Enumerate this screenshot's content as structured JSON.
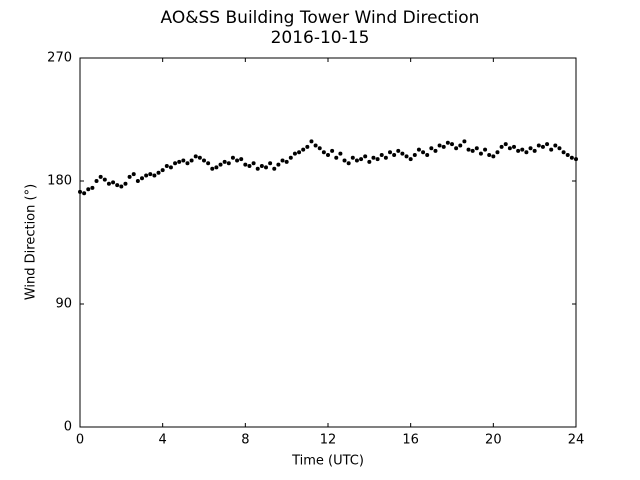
{
  "chart_data": {
    "type": "scatter",
    "title": "AO&SS Building Tower Wind Direction",
    "subtitle": "2016-10-15",
    "x_label": "Time (UTC)",
    "y_label": "Wind Direction (°)",
    "color": "#000000",
    "xlim": [
      0,
      24
    ],
    "xticks": [
      0,
      4,
      8,
      12,
      16,
      20,
      24
    ],
    "ylim": [
      0,
      270
    ],
    "yticks": [
      0,
      90,
      180,
      270
    ],
    "x": [
      0,
      0.2,
      0.4,
      0.6,
      0.8,
      1.0,
      1.2,
      1.4,
      1.6,
      1.8,
      2.0,
      2.2,
      2.4,
      2.6,
      2.8,
      3.0,
      3.2,
      3.4,
      3.6,
      3.8,
      4.0,
      4.2,
      4.4,
      4.6,
      4.8,
      5.0,
      5.2,
      5.4,
      5.6,
      5.8,
      6.0,
      6.2,
      6.4,
      6.6,
      6.8,
      7.0,
      7.2,
      7.4,
      7.6,
      7.8,
      8.0,
      8.2,
      8.4,
      8.6,
      8.8,
      9.0,
      9.2,
      9.4,
      9.6,
      9.8,
      10.0,
      10.2,
      10.4,
      10.6,
      10.8,
      11.0,
      11.2,
      11.4,
      11.6,
      11.8,
      12.0,
      12.2,
      12.4,
      12.6,
      12.8,
      13.0,
      13.2,
      13.4,
      13.6,
      13.8,
      14.0,
      14.2,
      14.4,
      14.6,
      14.8,
      15.0,
      15.2,
      15.4,
      15.6,
      15.8,
      16.0,
      16.2,
      16.4,
      16.6,
      16.8,
      17.0,
      17.2,
      17.4,
      17.6,
      17.8,
      18.0,
      18.2,
      18.4,
      18.6,
      18.8,
      19.0,
      19.2,
      19.4,
      19.6,
      19.8,
      20.0,
      20.2,
      20.4,
      20.6,
      20.8,
      21.0,
      21.2,
      21.4,
      21.6,
      21.8,
      22.0,
      22.2,
      22.4,
      22.6,
      22.8,
      23.0,
      23.2,
      23.4,
      23.6,
      23.8,
      24.0
    ],
    "values": [
      172,
      171,
      174,
      175,
      180,
      183,
      181,
      178,
      179,
      177,
      176,
      178,
      183,
      185,
      180,
      182,
      184,
      185,
      184,
      186,
      188,
      191,
      190,
      193,
      194,
      195,
      193,
      195,
      198,
      197,
      195,
      193,
      189,
      190,
      192,
      194,
      193,
      197,
      195,
      196,
      192,
      191,
      193,
      189,
      191,
      190,
      193,
      189,
      192,
      195,
      194,
      197,
      200,
      201,
      203,
      205,
      209,
      206,
      204,
      201,
      199,
      202,
      197,
      200,
      195,
      193,
      197,
      195,
      196,
      198,
      194,
      197,
      196,
      199,
      197,
      201,
      199,
      202,
      200,
      198,
      196,
      199,
      203,
      201,
      199,
      204,
      202,
      206,
      205,
      208,
      207,
      204,
      206,
      209,
      203,
      202,
      204,
      200,
      203,
      199,
      198,
      201,
      205,
      207,
      204,
      205,
      202,
      203,
      201,
      204,
      202,
      206,
      205,
      207,
      203,
      206,
      204,
      201,
      199,
      197,
      196
    ]
  }
}
